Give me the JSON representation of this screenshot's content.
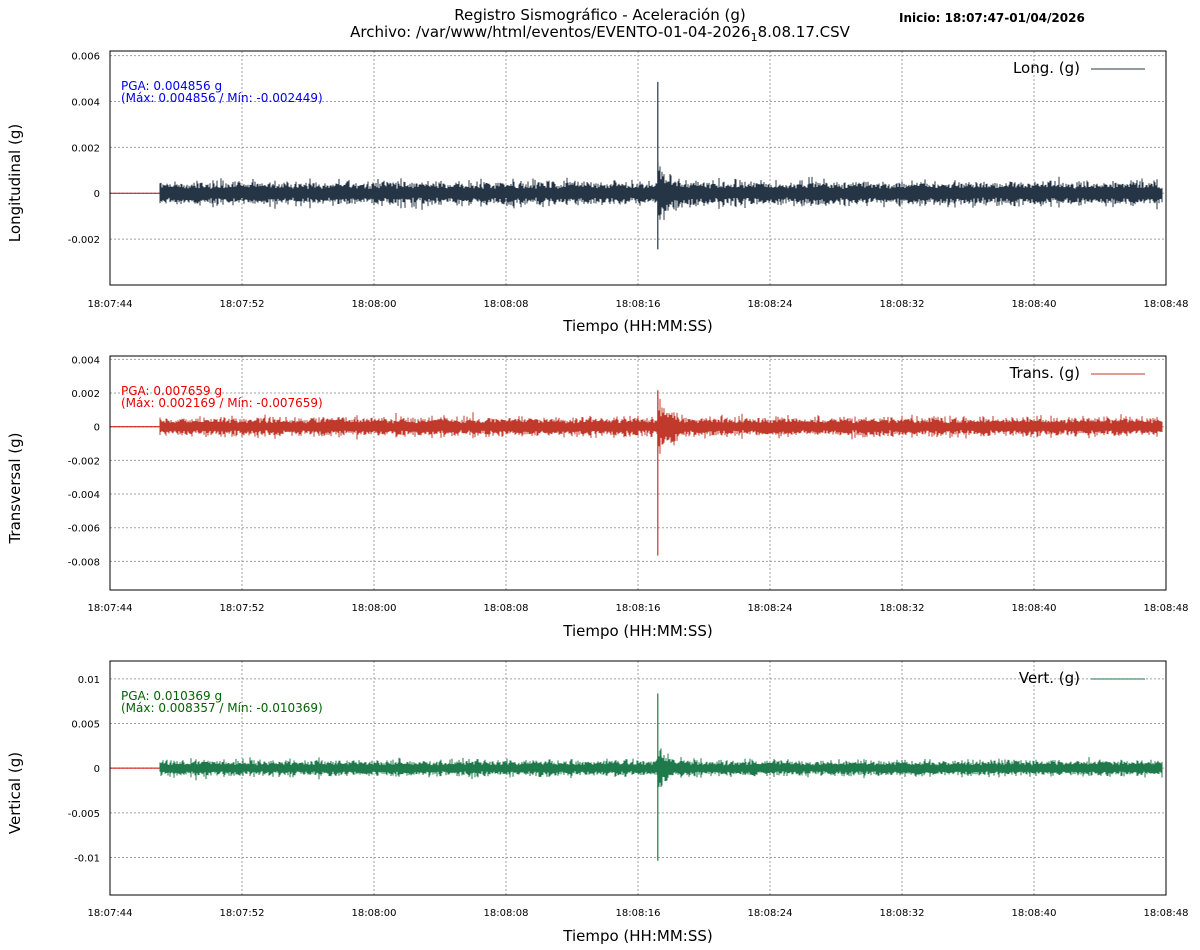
{
  "title": {
    "line1": "Registro Sismográfico - Aceleración (g)",
    "line2_pre": "Archivo: /var/www/html/eventos/EVENTO-01-04-2026",
    "line2_sub": "1",
    "line2_post": "8.08.17.CSV",
    "start_label": "Inicio: 18:07:47-01/04/2026"
  },
  "chart_data": [
    {
      "type": "line",
      "ylabel": "Longitudinal (g)",
      "xlabel": "Tiempo (HH:MM:SS)",
      "legend": "Long. (g)",
      "legend_position": "top-right",
      "color": "#263546",
      "grid": true,
      "ylim": [
        -0.004,
        0.0062
      ],
      "yticks": [
        0.006,
        0.004,
        0.002,
        0,
        -0.002
      ],
      "ytick_labels": [
        "0.006",
        "0.004",
        "0.002",
        "0",
        "-0.002"
      ],
      "xlim": [
        "18:07:44",
        "18:08:48"
      ],
      "xtick_labels": [
        "18:07:44",
        "18:07:52",
        "18:08:00",
        "18:08:08",
        "18:08:16",
        "18:08:24",
        "18:08:32",
        "18:08:40",
        "18:08:48"
      ],
      "baseline_color": "#cc0000",
      "signal_start": "18:07:47",
      "signal_end": "18:08:48",
      "noise_amplitude": 0.00055,
      "spike_time": "18:08:17.2",
      "spike_max": 0.004856,
      "spike_min": -0.002449,
      "annotation_line1": "PGA: 0.004856 g",
      "annotation_line2": "(Máx: 0.004856 / Mín: -0.002449)",
      "annotation_color": "#0000ee",
      "pga": 0.004856,
      "max": 0.004856,
      "min": -0.002449
    },
    {
      "type": "line",
      "ylabel": "Transversal (g)",
      "xlabel": "Tiempo (HH:MM:SS)",
      "legend": "Trans. (g)",
      "legend_position": "top-right",
      "color": "#c0392b",
      "grid": true,
      "ylim": [
        -0.0097,
        0.0042
      ],
      "yticks": [
        0.004,
        0.002,
        0,
        -0.002,
        -0.004,
        -0.006,
        -0.008
      ],
      "ytick_labels": [
        "0.004",
        "0.002",
        "0",
        "-0.002",
        "-0.004",
        "-0.006",
        "-0.008"
      ],
      "xlim": [
        "18:07:44",
        "18:08:48"
      ],
      "xtick_labels": [
        "18:07:44",
        "18:07:52",
        "18:08:00",
        "18:08:08",
        "18:08:16",
        "18:08:24",
        "18:08:32",
        "18:08:40",
        "18:08:48"
      ],
      "baseline_color": "#cc0000",
      "signal_start": "18:07:47",
      "signal_end": "18:08:48",
      "noise_amplitude": 0.0006,
      "spike_time": "18:08:17.2",
      "spike_max": 0.002169,
      "spike_min": -0.007659,
      "annotation_line1": "PGA: 0.007659 g",
      "annotation_line2": "(Máx: 0.002169 / Mín: -0.007659)",
      "annotation_color": "#ee0000",
      "pga": 0.007659,
      "max": 0.002169,
      "min": -0.007659
    },
    {
      "type": "line",
      "ylabel": "Vertical (g)",
      "xlabel": "Tiempo (HH:MM:SS)",
      "legend": "Vert. (g)",
      "legend_position": "top-right",
      "color": "#1e7a4a",
      "grid": true,
      "ylim": [
        -0.0142,
        0.012
      ],
      "yticks": [
        0.01,
        0.005,
        0,
        -0.005,
        -0.01
      ],
      "ytick_labels": [
        "0.01",
        "0.005",
        "0",
        "-0.005",
        "-0.01"
      ],
      "xlim": [
        "18:07:44",
        "18:08:48"
      ],
      "xtick_labels": [
        "18:07:44",
        "18:07:52",
        "18:08:00",
        "18:08:08",
        "18:08:16",
        "18:08:24",
        "18:08:32",
        "18:08:40",
        "18:08:48"
      ],
      "baseline_color": "#cc0000",
      "signal_start": "18:07:47",
      "signal_end": "18:08:48",
      "noise_amplitude": 0.00095,
      "spike_time": "18:08:17.2",
      "spike_max": 0.008357,
      "spike_min": -0.010369,
      "annotation_line1": "PGA: 0.010369 g",
      "annotation_line2": "(Máx: 0.008357 / Mín: -0.010369)",
      "annotation_color": "#006400",
      "pga": 0.010369,
      "max": 0.008357,
      "min": -0.010369
    }
  ]
}
